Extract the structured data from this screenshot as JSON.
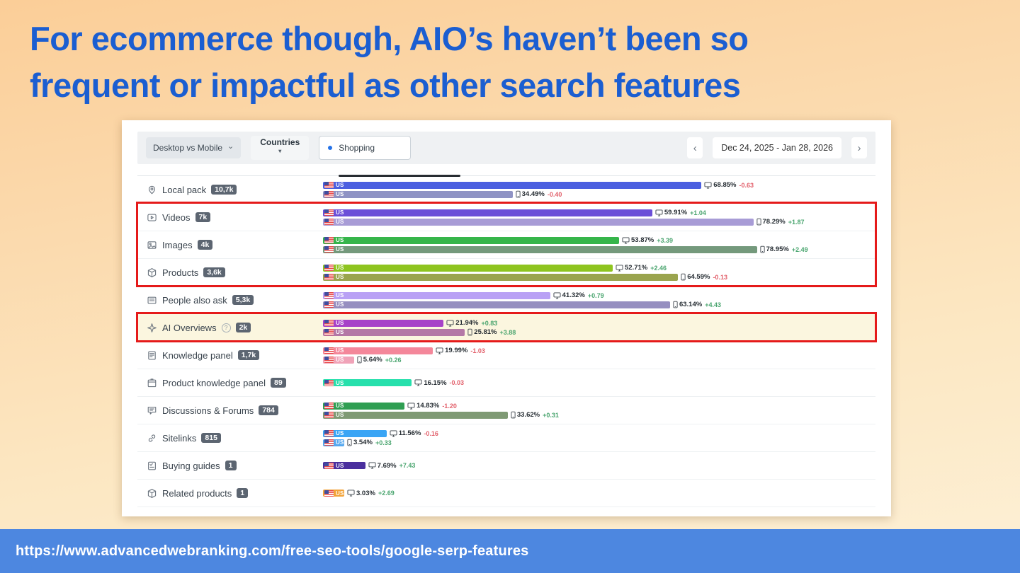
{
  "slide": {
    "title_line1": "For ecommerce though, AIO’s haven’t been so",
    "title_line2": "frequent or impactful as other search features",
    "footer_url": "https://www.advancedwebranking.com/free-seo-tools/google-serp-features",
    "title_color": "#1b5ed1",
    "footer_bg": "#4d87e0",
    "highlight_box_color": "#e51a1a"
  },
  "app": {
    "toolbar": {
      "device_filter": "Desktop vs Mobile",
      "countries": "Countries",
      "shopping": "Shopping",
      "date_range": "Dec 24, 2025 - Jan 28, 2026"
    }
  },
  "chart_data": {
    "type": "bar",
    "unit": "% of keywords triggering the SERP feature",
    "x_max": 100,
    "legend_position": "none",
    "rows": [
      {
        "label": "Local pack",
        "count": "10,7k",
        "icon": "location-pin",
        "highlighted": false,
        "bars": [
          {
            "country": "US",
            "device": "desktop",
            "value": 68.85,
            "change": -0.63,
            "color": "#4b5fe0"
          },
          {
            "country": "US",
            "device": "mobile",
            "value": 34.49,
            "change": -0.4,
            "color": "#8f93c4"
          }
        ]
      },
      {
        "label": "Videos",
        "count": "7k",
        "icon": "video",
        "highlighted": false,
        "bars": [
          {
            "country": "US",
            "device": "desktop",
            "value": 59.91,
            "change": 1.04,
            "color": "#6b4fd8"
          },
          {
            "country": "US",
            "device": "mobile",
            "value": 78.29,
            "change": 1.87,
            "color": "#a89cd6"
          }
        ]
      },
      {
        "label": "Images",
        "count": "4k",
        "icon": "image",
        "highlighted": false,
        "bars": [
          {
            "country": "US",
            "device": "desktop",
            "value": 53.87,
            "change": 3.39,
            "color": "#35b54a"
          },
          {
            "country": "US",
            "device": "mobile",
            "value": 78.95,
            "change": 2.49,
            "color": "#74997c"
          }
        ]
      },
      {
        "label": "Products",
        "count": "3,6k",
        "icon": "package",
        "highlighted": false,
        "bars": [
          {
            "country": "US",
            "device": "desktop",
            "value": 52.71,
            "change": 2.46,
            "color": "#8ec41f"
          },
          {
            "country": "US",
            "device": "mobile",
            "value": 64.59,
            "change": -0.13,
            "color": "#9aa44e"
          }
        ]
      },
      {
        "label": "People also ask",
        "count": "5,3k",
        "icon": "chat-lines",
        "highlighted": false,
        "bars": [
          {
            "country": "US",
            "device": "desktop",
            "value": 41.32,
            "change": 0.79,
            "color": "#b9a1f5"
          },
          {
            "country": "US",
            "device": "mobile",
            "value": 63.14,
            "change": 4.43,
            "color": "#968fc0"
          }
        ]
      },
      {
        "label": "AI Overviews",
        "count": "2k",
        "icon": "sparkle",
        "highlighted": true,
        "help": true,
        "bars": [
          {
            "country": "US",
            "device": "desktop",
            "value": 21.94,
            "change": 0.83,
            "color": "#a741c8"
          },
          {
            "country": "US",
            "device": "mobile",
            "value": 25.81,
            "change": 3.88,
            "color": "#b478a6"
          }
        ]
      },
      {
        "label": "Knowledge panel",
        "count": "1,7k",
        "icon": "panel",
        "highlighted": false,
        "bars": [
          {
            "country": "US",
            "device": "desktop",
            "value": 19.99,
            "change": -1.03,
            "color": "#f4879a"
          },
          {
            "country": "US",
            "device": "mobile",
            "value": 5.64,
            "change": 0.26,
            "color": "#f0a3b8"
          }
        ]
      },
      {
        "label": "Product knowledge panel",
        "count": "89",
        "icon": "product-panel",
        "highlighted": false,
        "bars": [
          {
            "country": "US",
            "device": "desktop",
            "value": 16.15,
            "change": -0.03,
            "color": "#27e0ac"
          }
        ]
      },
      {
        "label": "Discussions & Forums",
        "count": "784",
        "icon": "discussion",
        "highlighted": false,
        "bars": [
          {
            "country": "US",
            "device": "desktop",
            "value": 14.83,
            "change": -1.2,
            "color": "#2f9e52"
          },
          {
            "country": "US",
            "device": "mobile",
            "value": 33.62,
            "change": 0.31,
            "color": "#7f9a74"
          }
        ]
      },
      {
        "label": "Sitelinks",
        "count": "815",
        "icon": "link",
        "highlighted": false,
        "bars": [
          {
            "country": "US",
            "device": "desktop",
            "value": 11.56,
            "change": -0.16,
            "color": "#3aa5f5"
          },
          {
            "country": "US",
            "device": "mobile",
            "value": 3.54,
            "change": 0.33,
            "color": "#56a8ef"
          }
        ]
      },
      {
        "label": "Buying guides",
        "count": "1",
        "icon": "checklist",
        "highlighted": false,
        "bars": [
          {
            "country": "US",
            "device": "desktop",
            "value": 7.69,
            "change": 7.43,
            "color": "#4a2f9e"
          }
        ]
      },
      {
        "label": "Related products",
        "count": "1",
        "icon": "related-products",
        "highlighted": false,
        "bars": [
          {
            "country": "US",
            "device": "desktop",
            "value": 3.03,
            "change": 2.69,
            "color": "#f2a339"
          }
        ]
      }
    ],
    "highlight_boxes": [
      {
        "start": 1,
        "end": 3
      },
      {
        "start": 5,
        "end": 5
      }
    ]
  }
}
